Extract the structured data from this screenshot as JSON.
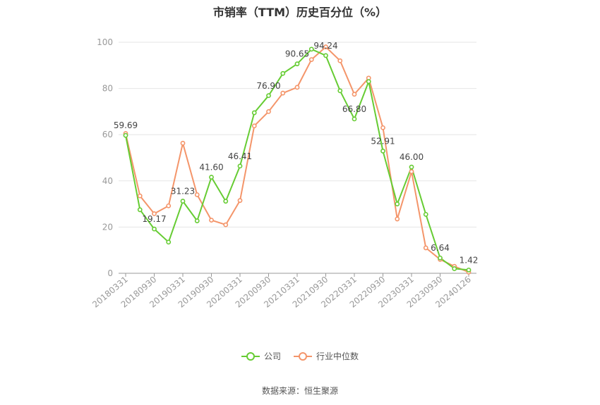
{
  "chart_data": {
    "type": "line",
    "title": "市销率（TTM）历史百分位（%）",
    "ylim": [
      0,
      100
    ],
    "yticks": [
      "0",
      "20",
      "40",
      "60",
      "80",
      "100"
    ],
    "x_tick_labels": [
      "20180331",
      "20180930",
      "20190331",
      "20190930",
      "20200331",
      "20200930",
      "20210331",
      "20210930",
      "20220331",
      "20220930",
      "20230331",
      "20230930",
      "20240126"
    ],
    "grid": true,
    "legend_position": "bottom",
    "series": [
      {
        "name": "公司",
        "color": "#66cc33",
        "values": [
          59.69,
          27.5,
          19.17,
          13.5,
          31.23,
          22.7,
          41.6,
          31.2,
          46.41,
          69.5,
          76.9,
          86.5,
          90.65,
          97.0,
          94.24,
          79.0,
          66.8,
          83.0,
          52.91,
          30.0,
          46.0,
          25.5,
          6.64,
          2.0,
          1.42
        ],
        "labels": {
          "0": "59.69",
          "2": "19.17",
          "4": "31.23",
          "6": "41.60",
          "8": "46.41",
          "10": "76.90",
          "12": "90.65",
          "14": "94.24",
          "16": "66.80",
          "18": "52.91",
          "20": "46.00",
          "22": "6.64",
          "24": "1.42"
        }
      },
      {
        "name": "行业中位数",
        "color": "#f4956a",
        "values": [
          60.5,
          33.5,
          25.8,
          29.2,
          56.3,
          34.0,
          23.0,
          21.0,
          31.5,
          63.8,
          70.0,
          78.0,
          80.5,
          92.5,
          98.0,
          92.0,
          77.5,
          84.5,
          63.0,
          23.5,
          44.0,
          11.0,
          6.0,
          3.0,
          0.5
        ]
      }
    ]
  },
  "legend": {
    "items": [
      "公司",
      "行业中位数"
    ]
  },
  "source": "数据来源：恒生聚源"
}
